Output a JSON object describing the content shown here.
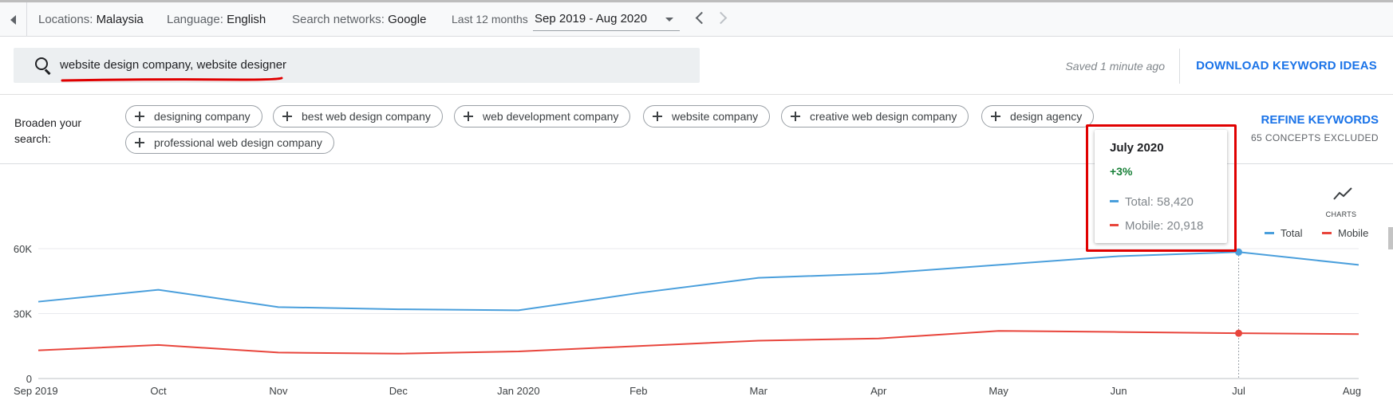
{
  "filters": {
    "locations_label": "Locations:",
    "locations_value": "Malaysia",
    "language_label": "Language:",
    "language_value": "English",
    "networks_label": "Search networks:",
    "networks_value": "Google",
    "period_label": "Last 12 months",
    "date_range": "Sep 2019 - Aug 2020"
  },
  "search": {
    "query": "website design company, website designer",
    "saved_status": "Saved 1 minute ago",
    "download_label": "DOWNLOAD KEYWORD IDEAS"
  },
  "broaden": {
    "label": "Broaden your search:",
    "chips": [
      "designing company",
      "best web design company",
      "web development company",
      "website company",
      "creative web design company",
      "design agency",
      "professional web design company"
    ],
    "refine_label": "REFINE KEYWORDS",
    "excluded_label": "65 CONCEPTS EXCLUDED"
  },
  "charts_button_label": "CHARTS",
  "tooltip": {
    "title": "July 2020",
    "change": "+3%",
    "total_text": "Total: 58,420",
    "mobile_text": "Mobile: 20,918"
  },
  "colors": {
    "total": "#4a9fdc",
    "mobile": "#e8453c",
    "accent": "#1a73e8",
    "highlight_box": "#e00000"
  },
  "chart_data": {
    "type": "line",
    "categories": [
      "Sep 2019",
      "Oct",
      "Nov",
      "Dec",
      "Jan 2020",
      "Feb",
      "Mar",
      "Apr",
      "May",
      "Jun",
      "Jul",
      "Aug"
    ],
    "series": [
      {
        "name": "Total",
        "values": [
          35500,
          41000,
          33000,
          32000,
          31500,
          39500,
          46500,
          48500,
          52500,
          56500,
          58420,
          52500
        ]
      },
      {
        "name": "Mobile",
        "values": [
          13000,
          15500,
          12000,
          11500,
          12500,
          15000,
          17500,
          18500,
          22000,
          21500,
          20918,
          20500
        ]
      }
    ],
    "yticks": [
      "0",
      "30K",
      "60K"
    ],
    "ylim": [
      0,
      60000
    ],
    "legend_position": "top-right",
    "highlight_category": "Jul",
    "grid": true
  }
}
